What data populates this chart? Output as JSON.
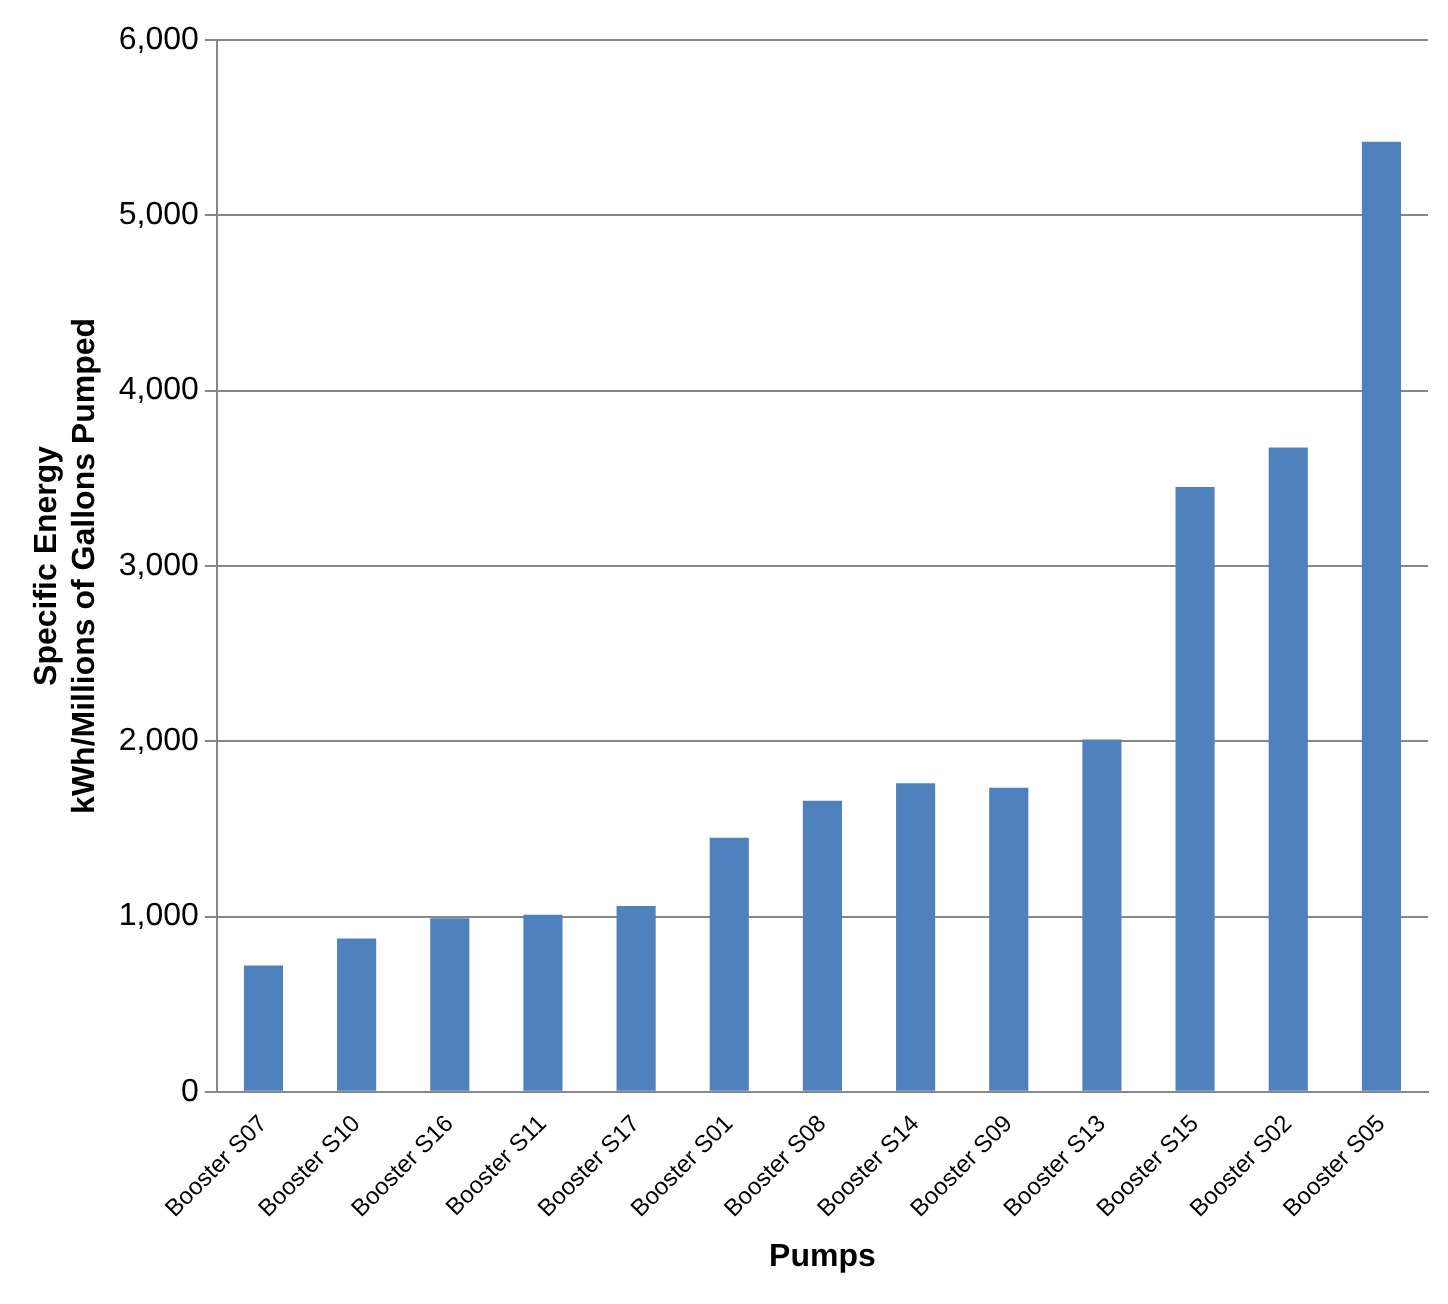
{
  "chart_data": {
    "type": "bar",
    "xlabel": "Pumps",
    "ylabel": "Specific Energy\nkWh/Millions of Gallons Pumped",
    "categories": [
      "Booster S07",
      "Booster S10",
      "Booster S16",
      "Booster S11",
      "Booster S17",
      "Booster S01",
      "Booster S08",
      "Booster S14",
      "Booster S09",
      "Booster S13",
      "Booster S15",
      "Booster S02",
      "Booster S05"
    ],
    "values": [
      720,
      875,
      990,
      1010,
      1060,
      1450,
      1660,
      1760,
      1735,
      2010,
      3450,
      3675,
      5420
    ],
    "color": "#4f81bd",
    "ylim": [
      0,
      6000
    ],
    "yticks": [
      {
        "value": 0,
        "label": "0"
      },
      {
        "value": 1000,
        "label": "1,000"
      },
      {
        "value": 2000,
        "label": "2,000"
      },
      {
        "value": 3000,
        "label": "3,000"
      },
      {
        "value": 4000,
        "label": "4,000"
      },
      {
        "value": 5000,
        "label": "5,000"
      },
      {
        "value": 6000,
        "label": "6,000"
      }
    ],
    "grid": "y",
    "legend": false
  }
}
